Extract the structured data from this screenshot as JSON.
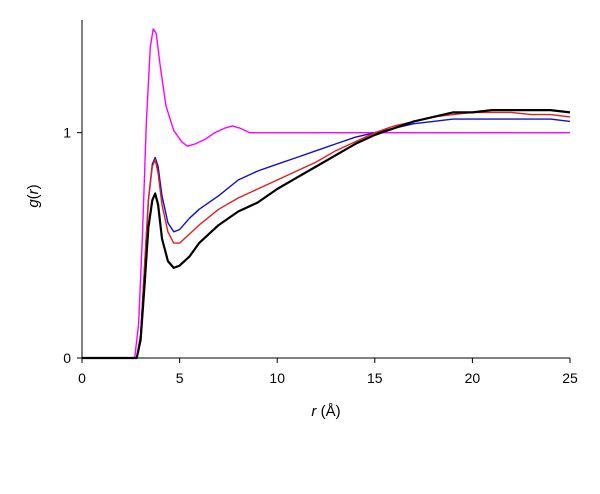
{
  "chart_data": {
    "type": "line",
    "xlabel_var": "r",
    "xlabel_unit": " (Å)",
    "ylabel_var": "g",
    "ylabel_paren_open": "(",
    "ylabel_arg": "r",
    "ylabel_paren_close": ")",
    "xlim": [
      0,
      25
    ],
    "ylim": [
      0,
      1.5
    ],
    "x_ticks": [
      0,
      5,
      10,
      15,
      20,
      25
    ],
    "x_tick_labels": [
      "0",
      "5",
      "10",
      "15",
      "20",
      "25"
    ],
    "y_ticks": [
      0,
      1
    ],
    "y_tick_labels": [
      "0",
      "1"
    ],
    "grid": false,
    "legend": "none",
    "series": [
      {
        "color": "#ff00ff",
        "width": 1.4,
        "x": [
          0,
          2.7,
          2.9,
          3.1,
          3.3,
          3.5,
          3.65,
          3.8,
          4.0,
          4.3,
          4.7,
          5.1,
          5.4,
          5.8,
          6.3,
          6.8,
          7.3,
          7.7,
          8.1,
          8.6,
          9.2,
          10,
          11,
          12,
          13,
          14,
          15,
          16,
          18,
          20,
          22,
          25
        ],
        "y": [
          0,
          0,
          0.15,
          0.55,
          1.05,
          1.38,
          1.46,
          1.44,
          1.3,
          1.12,
          1.01,
          0.96,
          0.94,
          0.95,
          0.97,
          1.0,
          1.02,
          1.03,
          1.02,
          1.0,
          1.0,
          1.0,
          1.0,
          1.0,
          1.0,
          1.0,
          1.0,
          1.0,
          1.0,
          1.0,
          1.0,
          1.0
        ]
      },
      {
        "color": "#1010c8",
        "width": 1.4,
        "x": [
          0,
          2.8,
          3.0,
          3.2,
          3.4,
          3.6,
          3.75,
          3.9,
          4.1,
          4.4,
          4.7,
          5.0,
          5.5,
          6.0,
          7.0,
          8.0,
          9.0,
          10,
          11,
          12,
          13,
          14,
          15,
          16,
          17,
          18,
          19,
          20,
          21,
          22,
          23,
          24,
          25
        ],
        "y": [
          0,
          0,
          0.1,
          0.4,
          0.7,
          0.86,
          0.89,
          0.85,
          0.72,
          0.6,
          0.56,
          0.57,
          0.62,
          0.66,
          0.72,
          0.79,
          0.83,
          0.86,
          0.89,
          0.92,
          0.95,
          0.98,
          1.0,
          1.02,
          1.04,
          1.05,
          1.06,
          1.06,
          1.06,
          1.06,
          1.06,
          1.06,
          1.05
        ]
      },
      {
        "color": "#e02020",
        "width": 1.4,
        "x": [
          0,
          2.8,
          3.0,
          3.2,
          3.4,
          3.6,
          3.75,
          3.9,
          4.1,
          4.4,
          4.7,
          5.0,
          5.5,
          6.0,
          7.0,
          8.0,
          9.0,
          10,
          11,
          12,
          13,
          14,
          15,
          16,
          17,
          18,
          19,
          20,
          21,
          22,
          23,
          24,
          25
        ],
        "y": [
          0,
          0,
          0.1,
          0.4,
          0.7,
          0.85,
          0.88,
          0.82,
          0.68,
          0.56,
          0.51,
          0.51,
          0.55,
          0.59,
          0.66,
          0.71,
          0.75,
          0.79,
          0.83,
          0.87,
          0.92,
          0.96,
          1.0,
          1.03,
          1.05,
          1.07,
          1.08,
          1.09,
          1.09,
          1.09,
          1.08,
          1.08,
          1.07
        ]
      },
      {
        "color": "#000000",
        "width": 2.2,
        "x": [
          0,
          2.8,
          3.0,
          3.2,
          3.4,
          3.6,
          3.75,
          3.9,
          4.1,
          4.4,
          4.7,
          5.0,
          5.5,
          6.0,
          7.0,
          8.0,
          9.0,
          10,
          11,
          12,
          13,
          14,
          15,
          16,
          17,
          18,
          19,
          20,
          21,
          22,
          23,
          24,
          25
        ],
        "y": [
          0,
          0,
          0.08,
          0.32,
          0.58,
          0.7,
          0.73,
          0.68,
          0.53,
          0.43,
          0.4,
          0.41,
          0.45,
          0.51,
          0.59,
          0.65,
          0.69,
          0.75,
          0.8,
          0.85,
          0.9,
          0.95,
          0.99,
          1.02,
          1.05,
          1.07,
          1.09,
          1.09,
          1.1,
          1.1,
          1.1,
          1.1,
          1.09
        ]
      }
    ]
  }
}
